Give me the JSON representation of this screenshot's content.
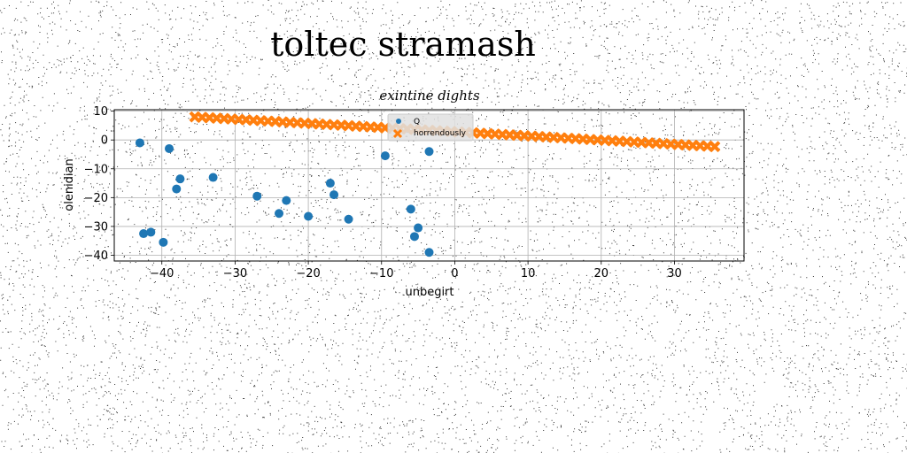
{
  "page": {
    "suptitle": "toltec stramash"
  },
  "chart_data": {
    "type": "scatter",
    "title": "exintine dights",
    "xlabel": "unbegirt",
    "ylabel": "olenidian",
    "xlim": [
      -46.5,
      39.5
    ],
    "ylim": [
      -42,
      10.5
    ],
    "xticks": [
      -40,
      -30,
      -20,
      -10,
      0,
      10,
      20,
      30
    ],
    "yticks": [
      10,
      0,
      -10,
      -20,
      -30,
      -40
    ],
    "grid": true,
    "legend": "upper-center",
    "series": [
      {
        "name": "Q",
        "marker": "circle",
        "color": "#1f77b4",
        "x": [
          -43,
          -39,
          -42.5,
          -41.5,
          -39.8,
          -38,
          -37.5,
          -33,
          -27,
          -24,
          -23,
          -20,
          -17,
          -16.5,
          -14.5,
          -9.5,
          -6,
          -5.5,
          -5,
          -3.5,
          -3.5
        ],
        "y": [
          -1,
          -3,
          -32.5,
          -32,
          -35.5,
          -17,
          -13.5,
          -13,
          -19.5,
          -25.5,
          -21,
          -26.5,
          -15,
          -19,
          -27.5,
          -5.5,
          -24,
          -33.5,
          -30.5,
          -4,
          -39
        ]
      },
      {
        "name": "horrendously",
        "marker": "x",
        "color": "#ff7f0e",
        "x_start": -35.5,
        "x_end": 35.5,
        "y_start": 8,
        "y_end": -2.3,
        "count": 72
      }
    ]
  }
}
